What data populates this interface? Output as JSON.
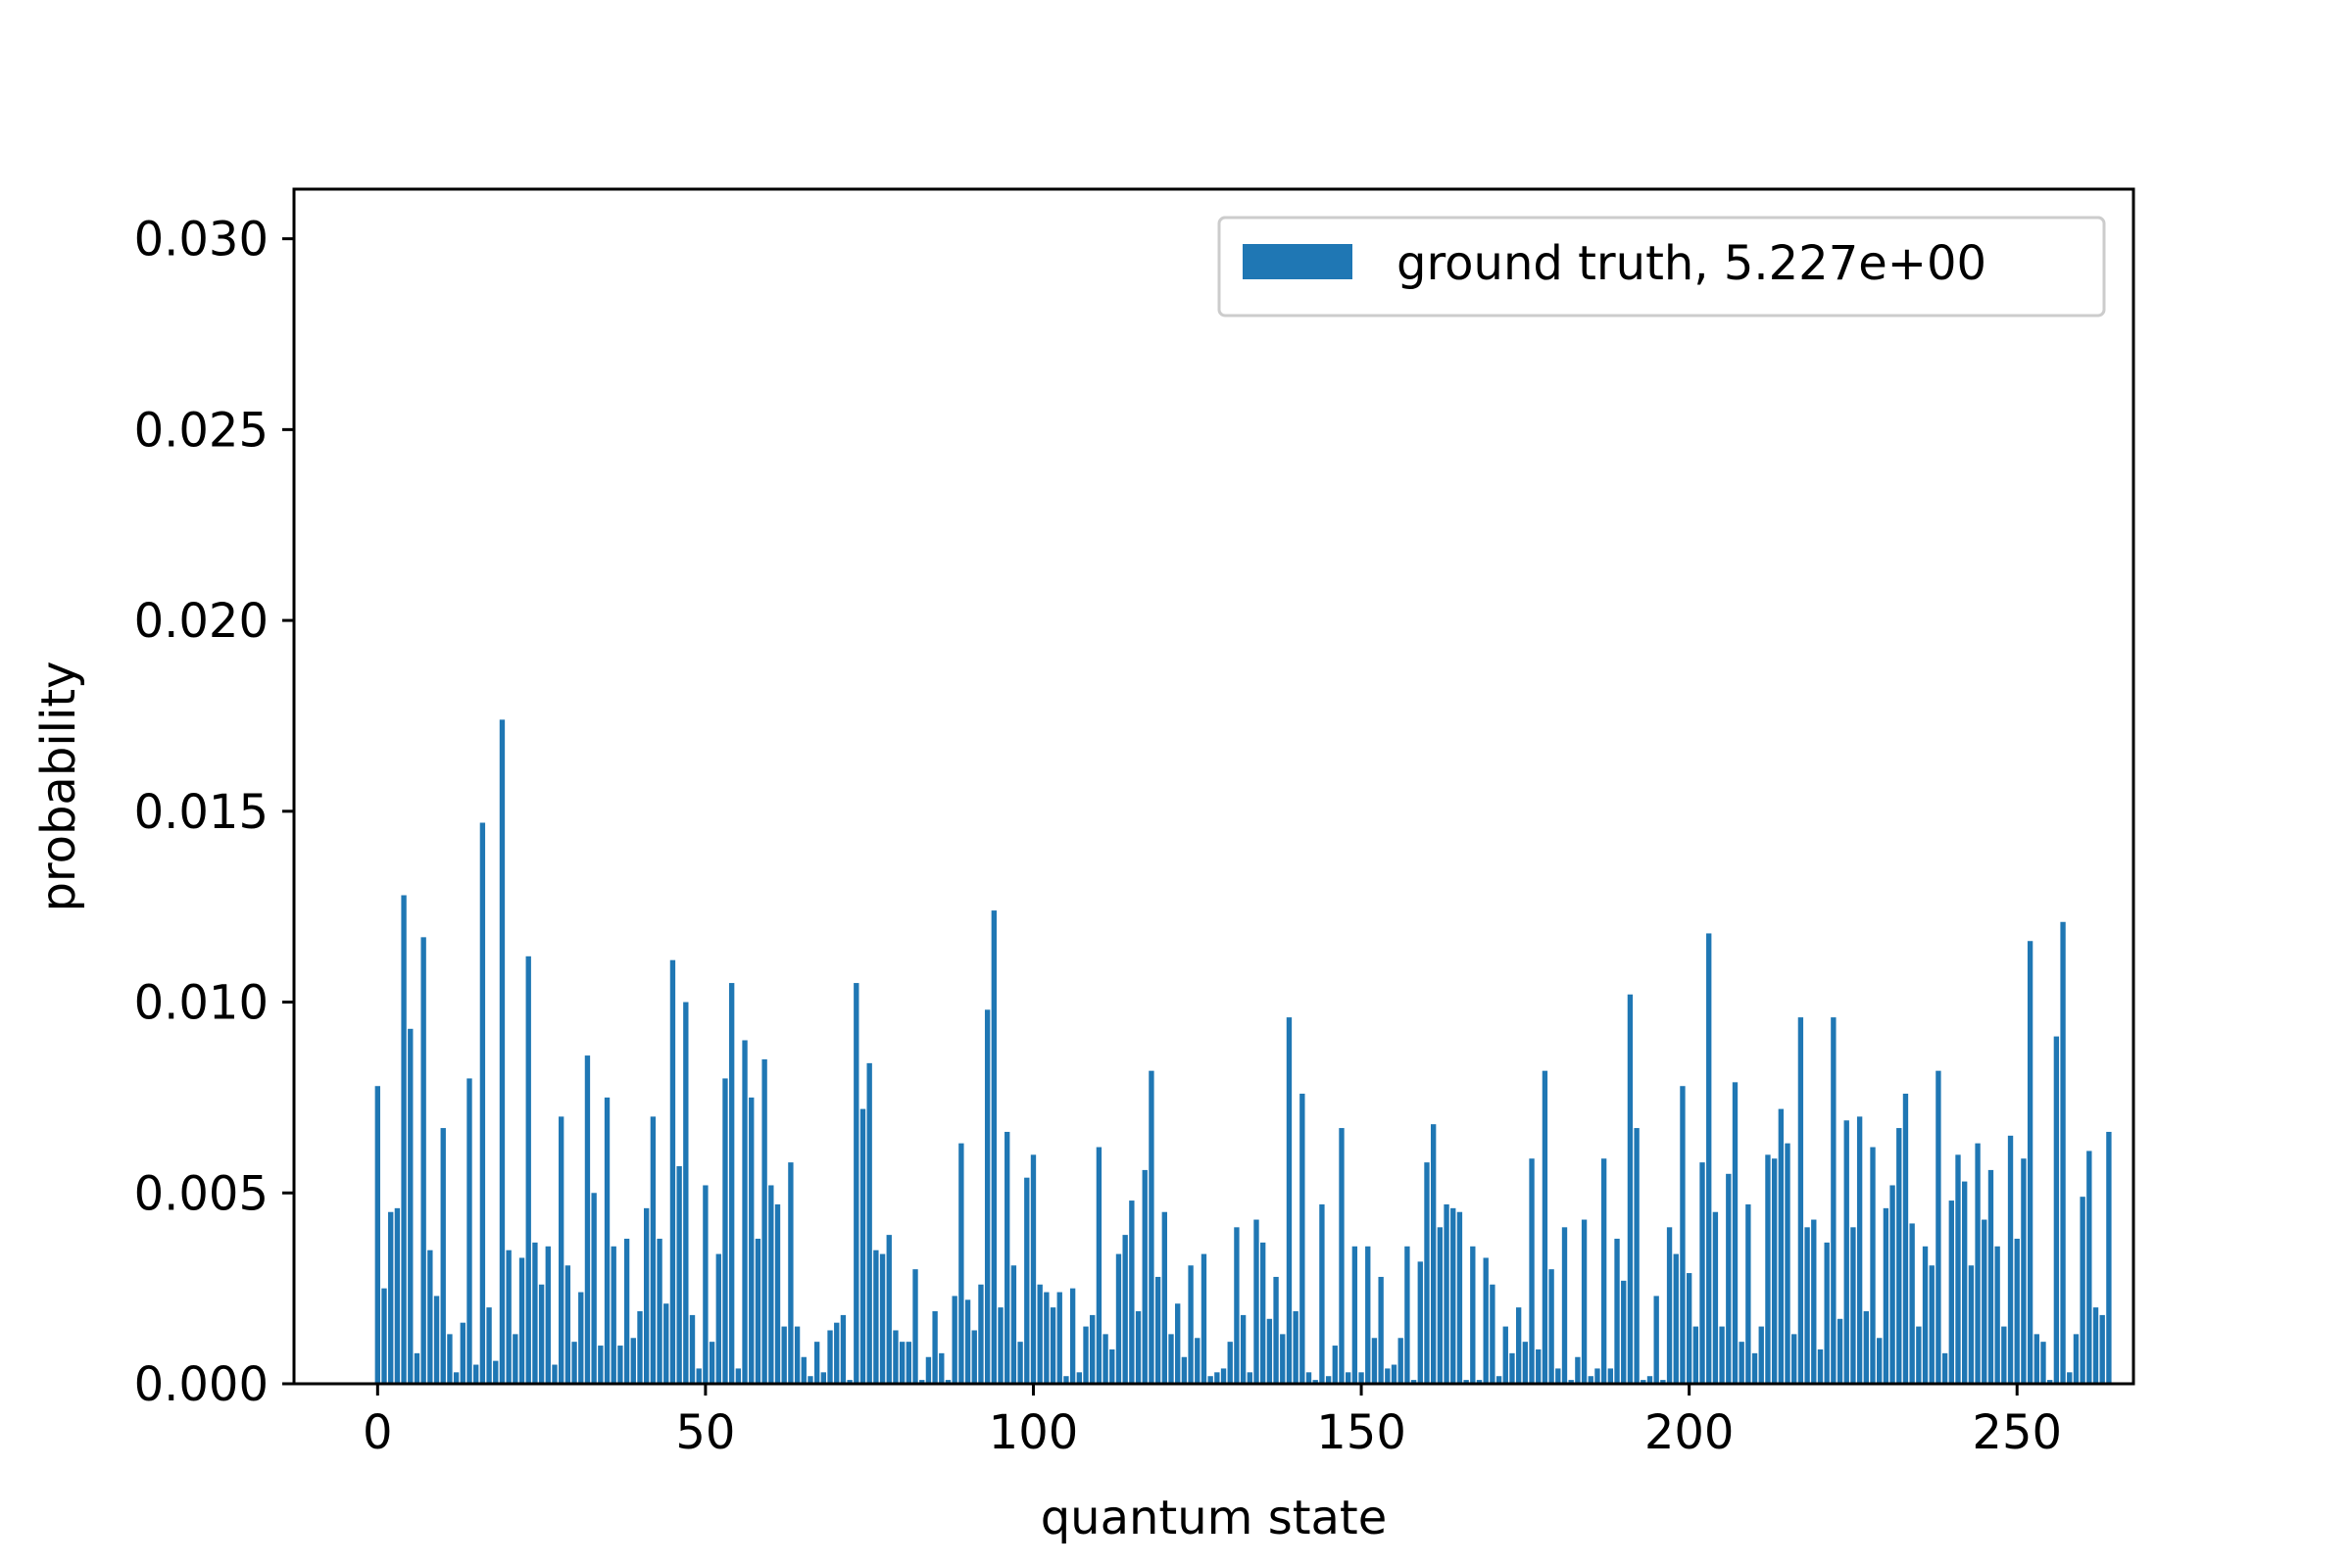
{
  "chart_data": {
    "type": "bar",
    "xlabel": "quantum state",
    "ylabel": "probability",
    "xlim": [
      -12.75,
      267.75
    ],
    "ylim": [
      0,
      0.0313
    ],
    "x_ticks": [
      0,
      50,
      100,
      150,
      200,
      250
    ],
    "x_tick_labels": [
      "0",
      "50",
      "100",
      "150",
      "200",
      "250"
    ],
    "y_ticks": [
      0,
      0.005,
      0.01,
      0.015,
      0.02,
      0.025,
      0.03
    ],
    "y_tick_labels": [
      "0.000",
      "0.005",
      "0.010",
      "0.015",
      "0.020",
      "0.025",
      "0.030"
    ],
    "grid": false,
    "legend_position": "top-right",
    "bar_color": "#1f77b4",
    "series": [
      {
        "name": "ground truth, 5.227e+00",
        "x_start": 0,
        "values": [
          0.0078,
          0.0025,
          0.0045,
          0.0046,
          0.0128,
          0.0093,
          0.0008,
          0.0117,
          0.0035,
          0.0023,
          0.0067,
          0.0013,
          0.0003,
          0.0016,
          0.008,
          0.0005,
          0.0147,
          0.002,
          0.0006,
          0.0174,
          0.0035,
          0.0013,
          0.0033,
          0.0112,
          0.0037,
          0.0026,
          0.0036,
          0.0005,
          0.007,
          0.0031,
          0.0011,
          0.0024,
          0.0086,
          0.005,
          0.001,
          0.0075,
          0.0036,
          0.001,
          0.0038,
          0.0012,
          0.0019,
          0.0046,
          0.007,
          0.0038,
          0.0021,
          0.0111,
          0.0057,
          0.01,
          0.0018,
          0.0004,
          0.0052,
          0.0011,
          0.0034,
          0.008,
          0.0105,
          0.0004,
          0.009,
          0.0075,
          0.0038,
          0.0085,
          0.0052,
          0.0047,
          0.0015,
          0.0058,
          0.0015,
          0.0007,
          0.0002,
          0.0011,
          0.0003,
          0.0014,
          0.0016,
          0.0018,
          0.0001,
          0.0105,
          0.0072,
          0.0084,
          0.0035,
          0.0034,
          0.0039,
          0.0014,
          0.0011,
          0.0011,
          0.003,
          0.0001,
          0.0007,
          0.0019,
          0.0008,
          0.0001,
          0.0023,
          0.0063,
          0.0022,
          0.0014,
          0.0026,
          0.0098,
          0.0124,
          0.002,
          0.0066,
          0.0031,
          0.0011,
          0.0054,
          0.006,
          0.0026,
          0.0024,
          0.002,
          0.0024,
          0.0002,
          0.0025,
          0.0003,
          0.0015,
          0.0018,
          0.0062,
          0.0013,
          0.0009,
          0.0034,
          0.0039,
          0.0048,
          0.0019,
          0.0056,
          0.0082,
          0.0028,
          0.0045,
          0.0013,
          0.0021,
          0.0007,
          0.0031,
          0.0012,
          0.0034,
          0.0002,
          0.0003,
          0.0004,
          0.0011,
          0.0041,
          0.0018,
          0.0003,
          0.0043,
          0.0037,
          0.0017,
          0.0028,
          0.0013,
          0.0096,
          0.0019,
          0.0076,
          0.0003,
          0.0001,
          0.0047,
          0.0002,
          0.001,
          0.0067,
          0.0003,
          0.0036,
          0.0003,
          0.0036,
          0.0012,
          0.0028,
          0.0004,
          0.0005,
          0.0012,
          0.0036,
          0.0001,
          0.0032,
          0.0058,
          0.0068,
          0.0041,
          0.0047,
          0.0046,
          0.0045,
          0.0001,
          0.0036,
          0.0001,
          0.0033,
          0.0026,
          0.0002,
          0.0015,
          0.0008,
          0.002,
          0.0011,
          0.0059,
          0.0009,
          0.0082,
          0.003,
          0.0004,
          0.0041,
          0.0001,
          0.0007,
          0.0043,
          0.0002,
          0.0004,
          0.0059,
          0.0004,
          0.0038,
          0.0027,
          0.0102,
          0.0067,
          0.0001,
          0.0002,
          0.0023,
          0.0001,
          0.0041,
          0.0034,
          0.0078,
          0.0029,
          0.0015,
          0.0058,
          0.0118,
          0.0045,
          0.0015,
          0.0055,
          0.0079,
          0.0011,
          0.0047,
          0.0008,
          0.0015,
          0.006,
          0.0059,
          0.0072,
          0.0063,
          0.0013,
          0.0096,
          0.0041,
          0.0043,
          0.0009,
          0.0037,
          0.0096,
          0.0017,
          0.0069,
          0.0041,
          0.007,
          0.0019,
          0.0062,
          0.0012,
          0.0046,
          0.0052,
          0.0067,
          0.0076,
          0.0042,
          0.0015,
          0.0036,
          0.0031,
          0.0082,
          0.0008,
          0.0048,
          0.006,
          0.0053,
          0.0031,
          0.0063,
          0.0043,
          0.0056,
          0.0036,
          0.0015,
          0.0065,
          0.0038,
          0.0059,
          0.0116,
          0.0013,
          0.0011,
          0.0001,
          0.0091,
          0.0121,
          0.0003,
          0.0013,
          0.0049,
          0.0061,
          0.002,
          0.0018,
          0.0066
        ]
      }
    ]
  }
}
